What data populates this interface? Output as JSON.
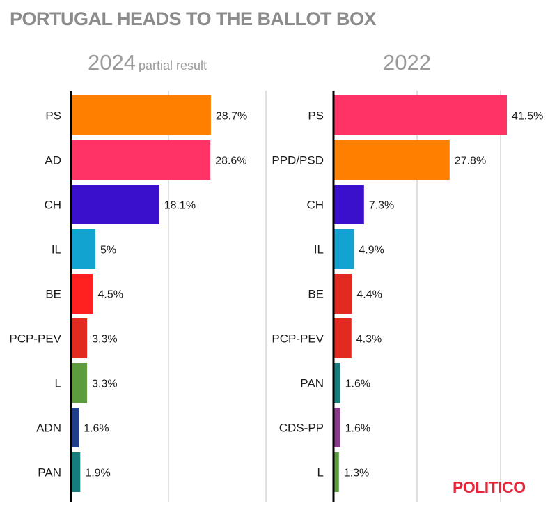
{
  "title": "PORTUGAL HEADS TO THE BALLOT BOX",
  "logo": "POLITICO",
  "chart_data": [
    {
      "type": "bar",
      "orientation": "horizontal",
      "title": "2024",
      "subtitle": "partial result",
      "categories": [
        "PS",
        "AD",
        "CH",
        "IL",
        "BE",
        "PCP-PEV",
        "L",
        "ADN",
        "PAN"
      ],
      "values": [
        28.7,
        28.6,
        18.1,
        5,
        4.5,
        3.3,
        3.3,
        1.6,
        1.9
      ],
      "labels": [
        "28.7%",
        "28.6%",
        "18.1%",
        "5%",
        "4.5%",
        "3.3%",
        "3.3%",
        "1.6%",
        "1.9%"
      ],
      "colors": [
        "#ff7f00",
        "#ff3366",
        "#3b10cc",
        "#12a3d1",
        "#ff2020",
        "#e32a20",
        "#5d9c3e",
        "#1f3f8a",
        "#167d7d"
      ],
      "xlim": [
        0,
        40
      ],
      "grid": true
    },
    {
      "type": "bar",
      "orientation": "horizontal",
      "title": "2022",
      "subtitle": "",
      "categories": [
        "PS",
        "PPD/PSD",
        "CH",
        "IL",
        "BE",
        "PCP-PEV",
        "PAN",
        "CDS-PP",
        "L"
      ],
      "values": [
        41.5,
        27.8,
        7.3,
        4.9,
        4.4,
        4.3,
        1.6,
        1.6,
        1.3
      ],
      "labels": [
        "41.5%",
        "27.8%",
        "7.3%",
        "4.9%",
        "4.4%",
        "4.3%",
        "1.6%",
        "1.6%",
        "1.3%"
      ],
      "colors": [
        "#ff3366",
        "#ff7f00",
        "#3b10cc",
        "#12a3d1",
        "#e32a20",
        "#e32a20",
        "#167d7d",
        "#8a3a8a",
        "#5d9c3e"
      ],
      "xlim": [
        0,
        40
      ],
      "grid": true
    }
  ]
}
